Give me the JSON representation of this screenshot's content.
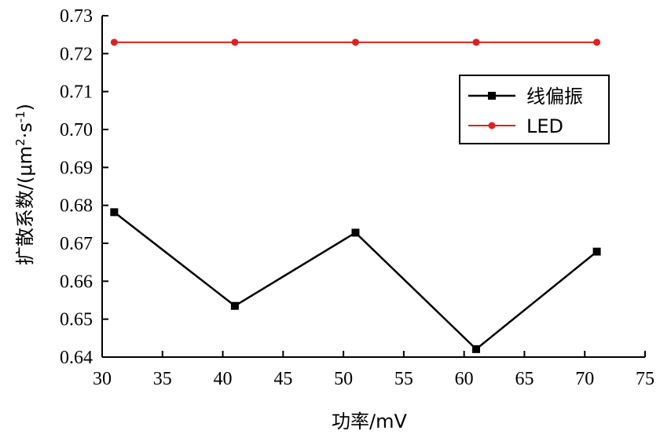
{
  "chart_data": {
    "type": "line",
    "xlabel": "功率/mV",
    "ylabel_main": "扩散系数/(μm",
    "ylabel_sup1": "2",
    "ylabel_mid": "·s",
    "ylabel_sup2": "-1",
    "ylabel_end": ")",
    "xlim": [
      30,
      75
    ],
    "ylim": [
      0.64,
      0.73
    ],
    "x_ticks": [
      "30",
      "35",
      "40",
      "45",
      "50",
      "55",
      "60",
      "65",
      "70",
      "75"
    ],
    "y_ticks": [
      "0.64",
      "0.65",
      "0.66",
      "0.67",
      "0.68",
      "0.69",
      "0.70",
      "0.71",
      "0.72",
      "0.73"
    ],
    "grid": false,
    "legend_position": "top-right",
    "series": [
      {
        "name": "线偏振",
        "color": "#000000",
        "marker": "square",
        "x": [
          31,
          41,
          51,
          61,
          71
        ],
        "y": [
          0.6782,
          0.6535,
          0.6728,
          0.6421,
          0.6678
        ]
      },
      {
        "name": "LED",
        "color": "#e02020",
        "marker": "circle",
        "x": [
          31,
          41,
          51,
          61,
          71
        ],
        "y": [
          0.723,
          0.723,
          0.723,
          0.723,
          0.723
        ]
      }
    ]
  }
}
